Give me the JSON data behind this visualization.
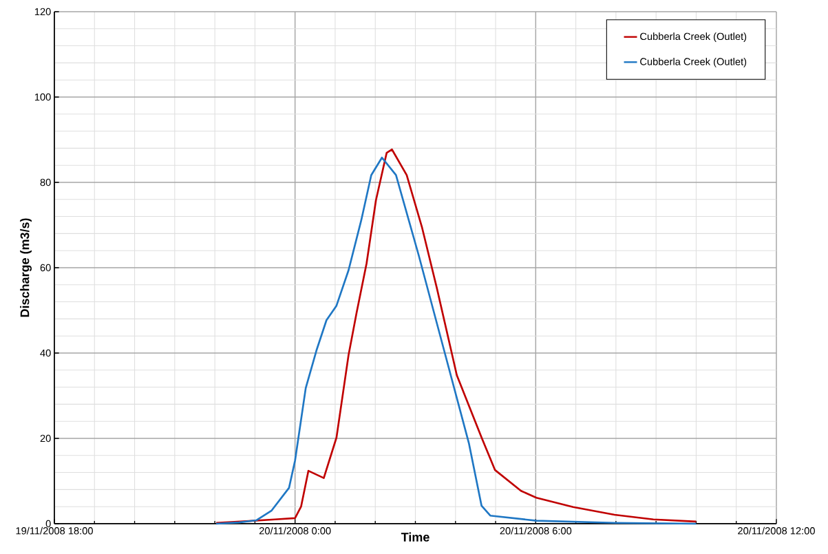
{
  "chart_data": {
    "type": "line",
    "xlabel": "Time",
    "ylabel": "Discharge (m3/s)",
    "xlim": [
      "2008-11-19T18:00",
      "2008-11-20T12:00"
    ],
    "ylim": [
      0,
      120
    ],
    "xticks": [
      {
        "value": "2008-11-19T18:00",
        "label": "19/11/2008 18:00"
      },
      {
        "value": "2008-11-19T19:00",
        "label": null
      },
      {
        "value": "2008-11-19T20:00",
        "label": null
      },
      {
        "value": "2008-11-19T21:00",
        "label": null
      },
      {
        "value": "2008-11-19T22:00",
        "label": null
      },
      {
        "value": "2008-11-19T23:00",
        "label": null
      },
      {
        "value": "2008-11-20T00:00",
        "label": "20/11/2008 0:00"
      },
      {
        "value": "2008-11-20T01:00",
        "label": null
      },
      {
        "value": "2008-11-20T02:00",
        "label": null
      },
      {
        "value": "2008-11-20T03:00",
        "label": null
      },
      {
        "value": "2008-11-20T04:00",
        "label": null
      },
      {
        "value": "2008-11-20T05:00",
        "label": null
      },
      {
        "value": "2008-11-20T06:00",
        "label": "20/11/2008 6:00"
      },
      {
        "value": "2008-11-20T07:00",
        "label": null
      },
      {
        "value": "2008-11-20T08:00",
        "label": null
      },
      {
        "value": "2008-11-20T09:00",
        "label": null
      },
      {
        "value": "2008-11-20T10:00",
        "label": null
      },
      {
        "value": "2008-11-20T11:00",
        "label": null
      },
      {
        "value": "2008-11-20T12:00",
        "label": "20/11/2008 12:00"
      }
    ],
    "yticks": [
      0,
      {
        "value": 4,
        "label": null
      },
      {
        "value": 8,
        "label": null
      },
      {
        "value": 12,
        "label": null
      },
      {
        "value": 16,
        "label": null
      },
      20,
      {
        "value": 24,
        "label": null
      },
      {
        "value": 28,
        "label": null
      },
      {
        "value": 32,
        "label": null
      },
      {
        "value": 36,
        "label": null
      },
      40,
      {
        "value": 44,
        "label": null
      },
      {
        "value": 48,
        "label": null
      },
      {
        "value": 52,
        "label": null
      },
      {
        "value": 56,
        "label": null
      },
      60,
      {
        "value": 64,
        "label": null
      },
      {
        "value": 68,
        "label": null
      },
      {
        "value": 72,
        "label": null
      },
      {
        "value": 76,
        "label": null
      },
      80,
      {
        "value": 84,
        "label": null
      },
      {
        "value": 88,
        "label": null
      },
      {
        "value": 92,
        "label": null
      },
      {
        "value": 96,
        "label": null
      },
      100,
      {
        "value": 104,
        "label": null
      },
      {
        "value": 108,
        "label": null
      },
      {
        "value": 112,
        "label": null
      },
      {
        "value": 116,
        "label": null
      },
      120
    ],
    "grid": true,
    "legend": "top right",
    "series": [
      {
        "name": "Cubberla Creek (Outlet)",
        "color": "#c00000",
        "x": [
          "2008-11-19T22:02",
          "2008-11-19T22:38",
          "2008-11-19T23:30",
          "2008-11-20T00:00",
          "2008-11-20T00:09",
          "2008-11-20T00:20",
          "2008-11-20T00:43",
          "2008-11-20T01:02",
          "2008-11-20T01:20",
          "2008-11-20T01:32",
          "2008-11-20T01:47",
          "2008-11-20T02:01",
          "2008-11-20T02:17",
          "2008-11-20T02:25",
          "2008-11-20T02:47",
          "2008-11-20T03:10",
          "2008-11-20T03:32",
          "2008-11-20T04:02",
          "2008-11-20T04:39",
          "2008-11-20T04:59",
          "2008-11-20T05:38",
          "2008-11-20T06:01",
          "2008-11-20T06:56",
          "2008-11-20T07:58",
          "2008-11-20T08:56",
          "2008-11-20T10:00"
        ],
        "values": [
          0.2,
          0.5,
          1.0,
          1.3,
          4.0,
          12.4,
          10.7,
          20.2,
          39.5,
          49.4,
          61,
          75.8,
          86.9,
          87.7,
          81.7,
          69.4,
          55.3,
          34.8,
          20.2,
          12.6,
          7.7,
          6.1,
          3.9,
          2.1,
          1.0,
          0.5
        ]
      },
      {
        "name": "Cubberla Creek (Outlet)",
        "color": "#1f77c4",
        "x": [
          "2008-11-19T22:02",
          "2008-11-19T22:36",
          "2008-11-19T23:02",
          "2008-11-19T23:25",
          "2008-11-19T23:51",
          "2008-11-20T00:00",
          "2008-11-20T00:16",
          "2008-11-20T00:32",
          "2008-11-20T00:47",
          "2008-11-20T01:02",
          "2008-11-20T01:20",
          "2008-11-20T01:39",
          "2008-11-20T01:54",
          "2008-11-20T02:10",
          "2008-11-20T02:31",
          "2008-11-20T03:05",
          "2008-11-20T03:43",
          "2008-11-20T04:20",
          "2008-11-20T04:39",
          "2008-11-20T04:52",
          "2008-11-20T06:01",
          "2008-11-20T07:58",
          "2008-11-20T10:00"
        ],
        "values": [
          0,
          0.3,
          0.8,
          3.1,
          8.4,
          14.8,
          31.8,
          40.6,
          47.7,
          51.1,
          59.4,
          71.1,
          81.7,
          85.8,
          81.7,
          62.9,
          40.6,
          18.9,
          4.2,
          1.9,
          0.7,
          0.2,
          0
        ]
      }
    ]
  }
}
